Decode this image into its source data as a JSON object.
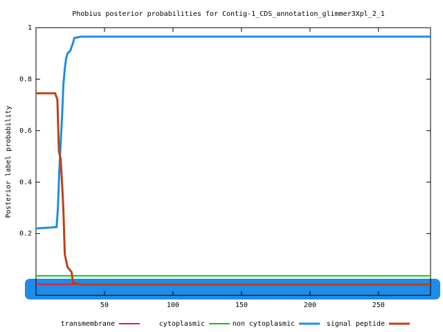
{
  "chart_data": {
    "type": "line",
    "title": "Phobius posterior probabilities for Contig-1_CDS_annotation_glimmer3Xpl_2_1",
    "y_label": "Posterior label probability",
    "xlim": [
      0,
      288
    ],
    "ylim": [
      -0.04,
      1
    ],
    "xticks": [
      50,
      100,
      150,
      200,
      250
    ],
    "yticks": [
      0.2,
      0.4,
      0.6,
      0.8,
      1
    ],
    "series": [
      {
        "name": "transmembrane",
        "color": "#e0203c",
        "x": [
          0,
          288
        ],
        "values": [
          0.003,
          0.003
        ]
      },
      {
        "name": "cytoplasmic",
        "color": "#10c010",
        "x": [
          0,
          288
        ],
        "values": [
          0.036,
          0.036
        ]
      },
      {
        "name": "non cytoplasmic",
        "color": "#1e8ce8",
        "x": [
          0,
          15,
          16,
          17,
          18,
          19,
          20,
          21,
          22,
          23,
          25,
          27,
          28,
          33,
          288
        ],
        "values": [
          0.22,
          0.225,
          0.3,
          0.44,
          0.55,
          0.65,
          0.78,
          0.84,
          0.88,
          0.9,
          0.91,
          0.94,
          0.96,
          0.965,
          0.965
        ]
      },
      {
        "name": "signal peptide",
        "color": "#c04010",
        "x": [
          0,
          14,
          15.6,
          16.7,
          18,
          19,
          20,
          21,
          23,
          26,
          27,
          32,
          288
        ],
        "values": [
          0.745,
          0.745,
          0.72,
          0.52,
          0.49,
          0.4,
          0.29,
          0.12,
          0.07,
          0.05,
          0.01,
          0.002,
          0.002
        ]
      }
    ]
  }
}
